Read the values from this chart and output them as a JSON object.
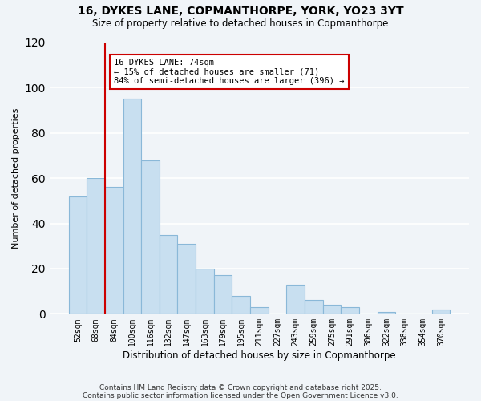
{
  "title": "16, DYKES LANE, COPMANTHORPE, YORK, YO23 3YT",
  "subtitle": "Size of property relative to detached houses in Copmanthorpe",
  "xlabel": "Distribution of detached houses by size in Copmanthorpe",
  "ylabel": "Number of detached properties",
  "bar_color": "#c8dff0",
  "bar_edge_color": "#8ab8d8",
  "background_color": "#f0f4f8",
  "grid_color": "#ffffff",
  "categories": [
    "52sqm",
    "68sqm",
    "84sqm",
    "100sqm",
    "116sqm",
    "132sqm",
    "147sqm",
    "163sqm",
    "179sqm",
    "195sqm",
    "211sqm",
    "227sqm",
    "243sqm",
    "259sqm",
    "275sqm",
    "291sqm",
    "306sqm",
    "322sqm",
    "338sqm",
    "354sqm",
    "370sqm"
  ],
  "values": [
    52,
    60,
    56,
    95,
    68,
    35,
    31,
    20,
    17,
    8,
    3,
    0,
    13,
    6,
    4,
    3,
    0,
    1,
    0,
    0,
    2
  ],
  "ylim": [
    0,
    120
  ],
  "yticks": [
    0,
    20,
    40,
    60,
    80,
    100,
    120
  ],
  "vline_x": 1.5,
  "vline_color": "#cc0000",
  "annotation_title": "16 DYKES LANE: 74sqm",
  "annotation_line1": "← 15% of detached houses are smaller (71)",
  "annotation_line2": "84% of semi-detached houses are larger (396) →",
  "annotation_box_color": "#ffffff",
  "annotation_border_color": "#cc0000",
  "footer_line1": "Contains HM Land Registry data © Crown copyright and database right 2025.",
  "footer_line2": "Contains public sector information licensed under the Open Government Licence v3.0."
}
